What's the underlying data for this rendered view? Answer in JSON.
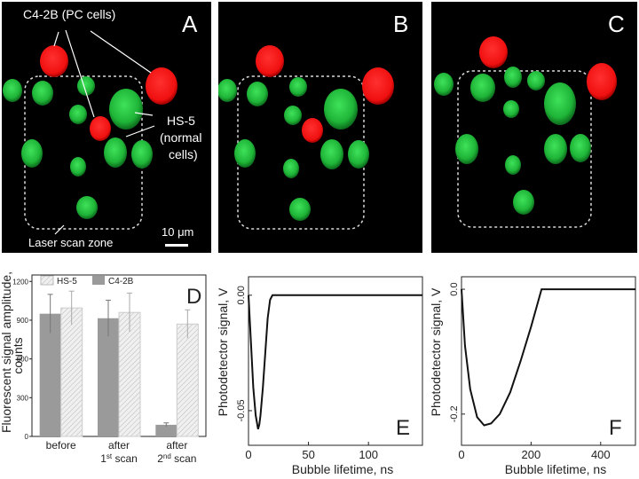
{
  "figure": {
    "panel_a": {
      "letter": "A",
      "label_pc": "C4-2B (PC cells)",
      "label_normal_1": "HS-5",
      "label_normal_2": "(normal",
      "label_normal_3": "cells)",
      "label_zone": "Laser scan zone",
      "scalebar": "10 μm"
    },
    "panel_b": {
      "letter": "B"
    },
    "panel_c": {
      "letter": "C"
    },
    "colors": {
      "pc": "#ff1a1a",
      "normal": "#22c03a",
      "bg": "#000000",
      "zone": "#d8d8d8"
    }
  },
  "chart_data": [
    {
      "id": "D",
      "type": "bar",
      "panel_letter": "D",
      "ylabel": "Fluorescent signal amplitude, counts",
      "ylim": [
        0,
        1250
      ],
      "yticks": [
        0,
        300,
        600,
        900,
        1200
      ],
      "category_labels": [
        "before",
        "after",
        "after"
      ],
      "category_sublabels": [
        "",
        "1st scan",
        "2nd scan"
      ],
      "series": [
        {
          "name": "C4-2B",
          "color": "#9a9a9a",
          "values": [
            950,
            915,
            90
          ],
          "errors": [
            150,
            140,
            15
          ]
        },
        {
          "name": "HS-5",
          "color": "#f0f0f0",
          "values": [
            995,
            960,
            870
          ],
          "errors": [
            130,
            150,
            110
          ]
        }
      ],
      "legend": [
        "HS-5",
        "C4-2B"
      ]
    },
    {
      "id": "E",
      "type": "line",
      "panel_letter": "E",
      "xlabel": "Bubble lifetime, ns",
      "ylabel": "Photodetector signal, V",
      "xlim": [
        0,
        145
      ],
      "ylim": [
        -0.065,
        0.008
      ],
      "xticks": [
        0,
        50,
        100
      ],
      "yticks": [
        0.0,
        -0.05
      ],
      "ytick_labels": [
        "0.00",
        "-0.05"
      ],
      "x": [
        0,
        2,
        4,
        6,
        8,
        9,
        10,
        12,
        14,
        16,
        18,
        20,
        145
      ],
      "y": [
        0.0,
        -0.02,
        -0.04,
        -0.052,
        -0.058,
        -0.056,
        -0.052,
        -0.04,
        -0.025,
        -0.01,
        -0.002,
        0.0,
        0.0
      ]
    },
    {
      "id": "F",
      "type": "line",
      "panel_letter": "F",
      "xlabel": "Bubble lifetime, ns",
      "ylabel": "Photodetector signal, V",
      "xlim": [
        0,
        500
      ],
      "ylim": [
        -0.25,
        0.02
      ],
      "xticks": [
        0,
        200,
        400
      ],
      "yticks": [
        0.0,
        -0.2
      ],
      "ytick_labels": [
        "0.0",
        "-0.2"
      ],
      "x": [
        0,
        10,
        25,
        45,
        65,
        85,
        110,
        140,
        170,
        200,
        230,
        500
      ],
      "y": [
        0.0,
        -0.09,
        -0.16,
        -0.205,
        -0.218,
        -0.215,
        -0.2,
        -0.165,
        -0.115,
        -0.06,
        0.0,
        0.0
      ]
    }
  ]
}
